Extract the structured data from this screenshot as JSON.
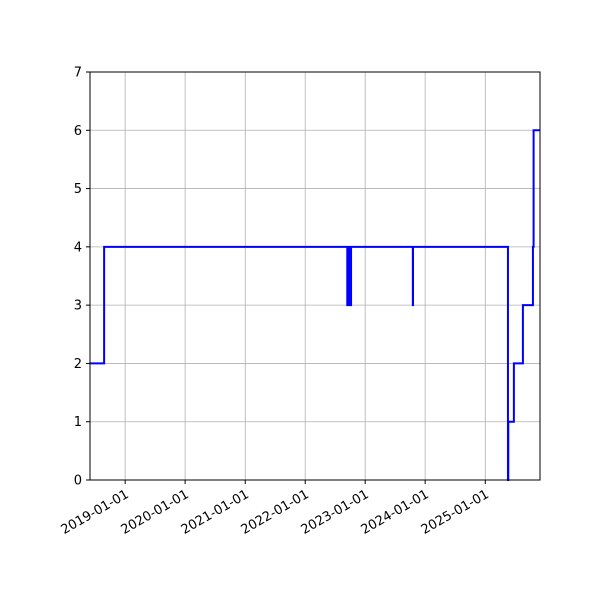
{
  "chart_data": {
    "type": "line",
    "step": "post",
    "title": "",
    "xlabel": "",
    "ylabel": "",
    "xlim": [
      "2018-06-01",
      "2025-11-30"
    ],
    "ylim": [
      0,
      7
    ],
    "grid": true,
    "x_ticks": [
      "2019-01-01",
      "2020-01-01",
      "2021-01-01",
      "2022-01-01",
      "2023-01-01",
      "2024-01-01",
      "2025-01-01"
    ],
    "y_ticks": [
      "0",
      "1",
      "2",
      "3",
      "4",
      "5",
      "6",
      "7"
    ],
    "series": [
      {
        "color": "#0000ff",
        "points": [
          [
            "2018-06-01",
            2
          ],
          [
            "2018-08-26",
            4
          ],
          [
            "2022-09-14",
            3
          ],
          [
            "2022-09-18",
            4
          ],
          [
            "2022-09-22",
            3
          ],
          [
            "2022-09-26",
            4
          ],
          [
            "2022-10-03",
            3
          ],
          [
            "2022-10-07",
            4
          ],
          [
            "2023-10-18",
            3
          ],
          [
            "2023-10-19",
            4
          ],
          [
            "2025-05-19",
            0
          ],
          [
            "2025-05-21",
            1
          ],
          [
            "2025-06-24",
            2
          ],
          [
            "2025-08-18",
            3
          ],
          [
            "2025-10-18",
            4
          ],
          [
            "2025-10-22",
            6
          ],
          [
            "2025-11-30",
            6
          ]
        ]
      }
    ]
  }
}
